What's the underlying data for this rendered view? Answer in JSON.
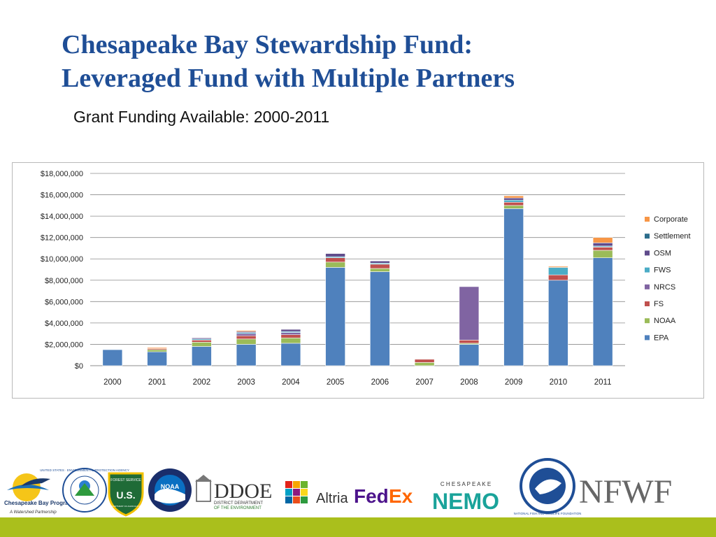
{
  "slide": {
    "title_line1": "Chesapeake Bay Stewardship Fund:",
    "title_line2": "Leveraged Fund with Multiple Partners",
    "subtitle": "Grant Funding Available: 2000-2011"
  },
  "chart_data": {
    "type": "bar",
    "stacked": true,
    "title": "",
    "xlabel": "",
    "ylabel": "",
    "ylim": [
      0,
      18000000
    ],
    "yticks": [
      0,
      2000000,
      4000000,
      6000000,
      8000000,
      10000000,
      12000000,
      14000000,
      16000000,
      18000000
    ],
    "ytick_labels": [
      "$0",
      "$2,000,000",
      "$4,000,000",
      "$6,000,000",
      "$8,000,000",
      "$10,000,000",
      "$12,000,000",
      "$14,000,000",
      "$16,000,000",
      "$18,000,000"
    ],
    "grid": true,
    "legend_position": "right",
    "categories": [
      "2000",
      "2001",
      "2002",
      "2003",
      "2004",
      "2005",
      "2006",
      "2007",
      "2008",
      "2009",
      "2010",
      "2011"
    ],
    "series": [
      {
        "name": "EPA",
        "color": "#4f81bd",
        "values": [
          1500000,
          1300000,
          1800000,
          2000000,
          2100000,
          9200000,
          8800000,
          0,
          2000000,
          14700000,
          8000000,
          10100000
        ]
      },
      {
        "name": "NOAA",
        "color": "#9bbb59",
        "values": [
          0,
          200000,
          400000,
          500000,
          500000,
          500000,
          300000,
          300000,
          100000,
          300000,
          0,
          700000
        ]
      },
      {
        "name": "FS",
        "color": "#c0504d",
        "values": [
          0,
          100000,
          200000,
          300000,
          300000,
          400000,
          400000,
          300000,
          300000,
          300000,
          500000,
          300000
        ]
      },
      {
        "name": "NRCS",
        "color": "#8064a2",
        "values": [
          0,
          0,
          0,
          200000,
          200000,
          0,
          0,
          0,
          5000000,
          0,
          0,
          0
        ]
      },
      {
        "name": "FWS",
        "color": "#4bacc6",
        "values": [
          0,
          0,
          100000,
          100000,
          100000,
          100000,
          100000,
          0,
          0,
          200000,
          700000,
          100000
        ]
      },
      {
        "name": "OSM",
        "color": "#5f4b8b",
        "values": [
          0,
          0,
          100000,
          100000,
          200000,
          300000,
          200000,
          0,
          0,
          200000,
          0,
          300000
        ]
      },
      {
        "name": "Settlement",
        "color": "#2c6d8c",
        "values": [
          0,
          0,
          0,
          0,
          0,
          0,
          0,
          0,
          0,
          0,
          0,
          0
        ]
      },
      {
        "name": "Corporate",
        "color": "#f79646",
        "values": [
          0,
          100000,
          0,
          100000,
          0,
          0,
          0,
          0,
          0,
          200000,
          100000,
          500000
        ]
      }
    ]
  },
  "logos": {
    "cbp_line1": "Chesapeake Bay Progra",
    "cbp_line2": "A Watershed Partnership",
    "epa_ring": "UNITED STATES · ENVIRONMENTAL PROTECTION AGENCY",
    "fs_text1": "FOREST SERVICE",
    "fs_text2": "U.S.",
    "fs_text3": "DEPARTMENT OF AGRICULTURE",
    "noaa_text": "NOAA",
    "ddoe_big": "DDOE",
    "ddoe_line1": "DISTRICT DEPARTMENT",
    "ddoe_line2": "OF THE ENVIRONMENT",
    "altria": "Altria",
    "fedex_fed": "Fed",
    "fedex_ex": "Ex",
    "nemo_top": "C H E S A P E A K E",
    "nemo_main": "NEMO",
    "nfwf_ring": "NATIONAL FISH AND WILDLIFE FOUNDATION",
    "nfwf": "NFWF"
  },
  "colors": {
    "title": "#1f4e96",
    "bottom_bar": "#aabf1c"
  }
}
